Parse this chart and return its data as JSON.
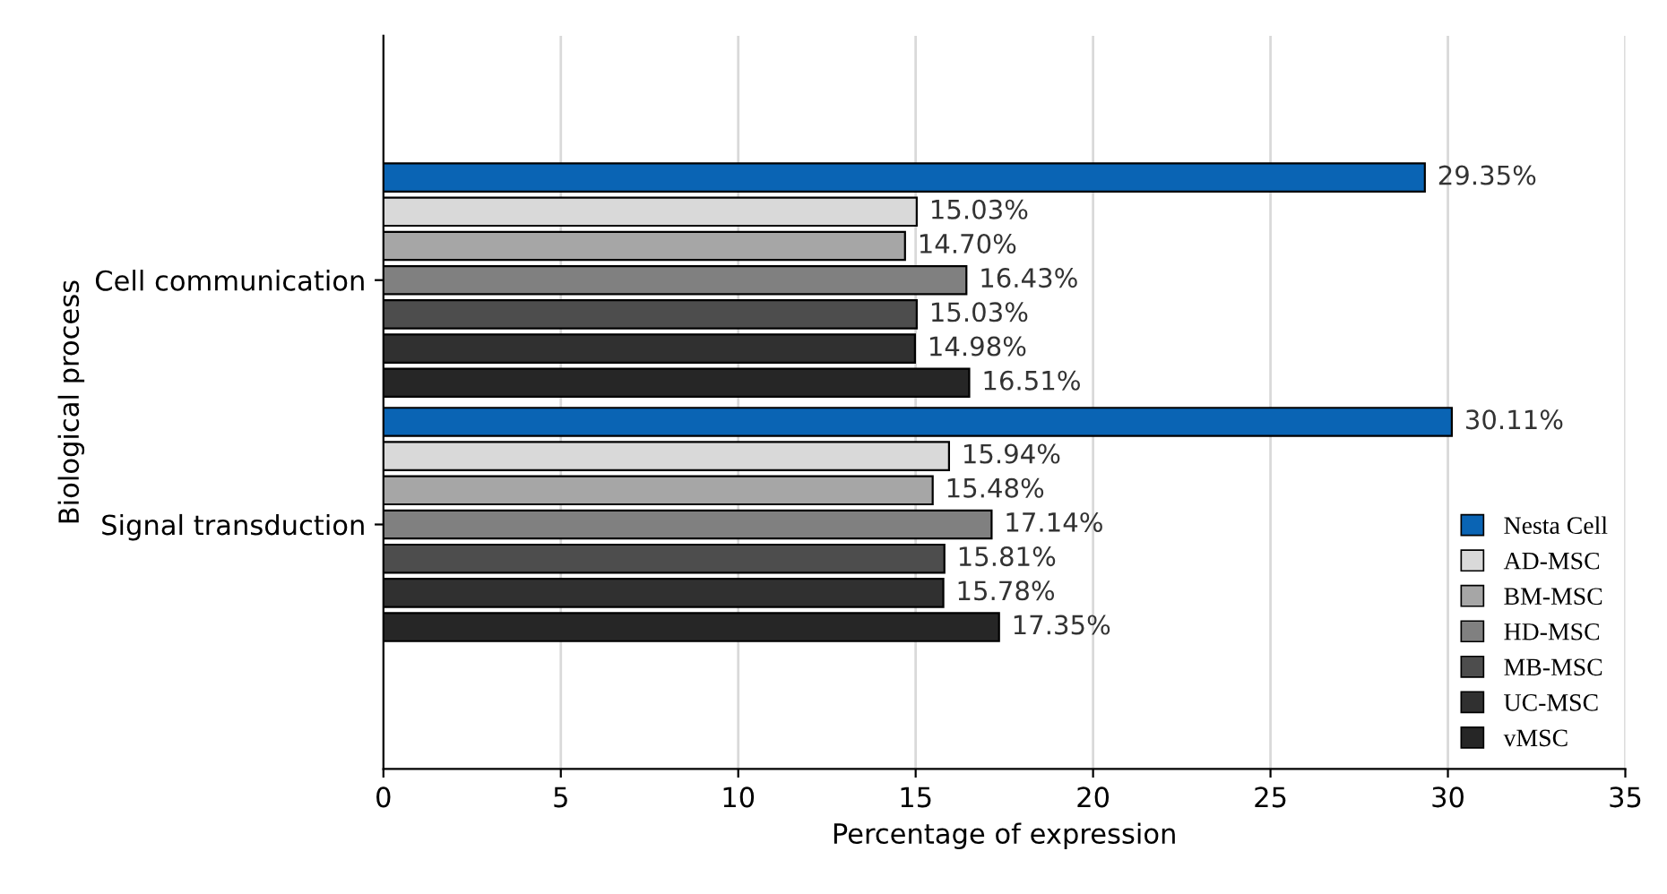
{
  "chart_data": {
    "type": "bar",
    "orientation": "horizontal",
    "xlabel": "Percentage of expression",
    "ylabel": "Biological process",
    "categories": [
      "Cell communication",
      "Signal transduction"
    ],
    "series": [
      {
        "name": "Nesta Cell",
        "color": "#0a64b4",
        "values": [
          29.35,
          30.11
        ],
        "value_labels": [
          "29.35%",
          "30.11%"
        ]
      },
      {
        "name": "AD-MSC",
        "color": "#d9d9d9",
        "values": [
          15.03,
          15.94
        ],
        "value_labels": [
          "15.03%",
          "15.94%"
        ]
      },
      {
        "name": "BM-MSC",
        "color": "#a6a6a6",
        "values": [
          14.7,
          15.48
        ],
        "value_labels": [
          "14.70%",
          "15.48%"
        ]
      },
      {
        "name": "HD-MSC",
        "color": "#808080",
        "values": [
          16.43,
          17.14
        ],
        "value_labels": [
          "16.43%",
          "17.14%"
        ]
      },
      {
        "name": "MB-MSC",
        "color": "#4d4d4d",
        "values": [
          15.03,
          15.81
        ],
        "value_labels": [
          "15.03%",
          "15.81%"
        ]
      },
      {
        "name": "UC-MSC",
        "color": "#303030",
        "values": [
          14.98,
          15.78
        ],
        "value_labels": [
          "14.98%",
          "15.78%"
        ]
      },
      {
        "name": "vMSC",
        "color": "#262626",
        "values": [
          16.51,
          17.35
        ],
        "value_labels": [
          "16.51%",
          "17.35%"
        ]
      }
    ],
    "xlim": [
      0,
      35
    ],
    "xticks": [
      0,
      5,
      10,
      15,
      20,
      25,
      30,
      35
    ],
    "grid": "x",
    "legend": "bottom right"
  }
}
